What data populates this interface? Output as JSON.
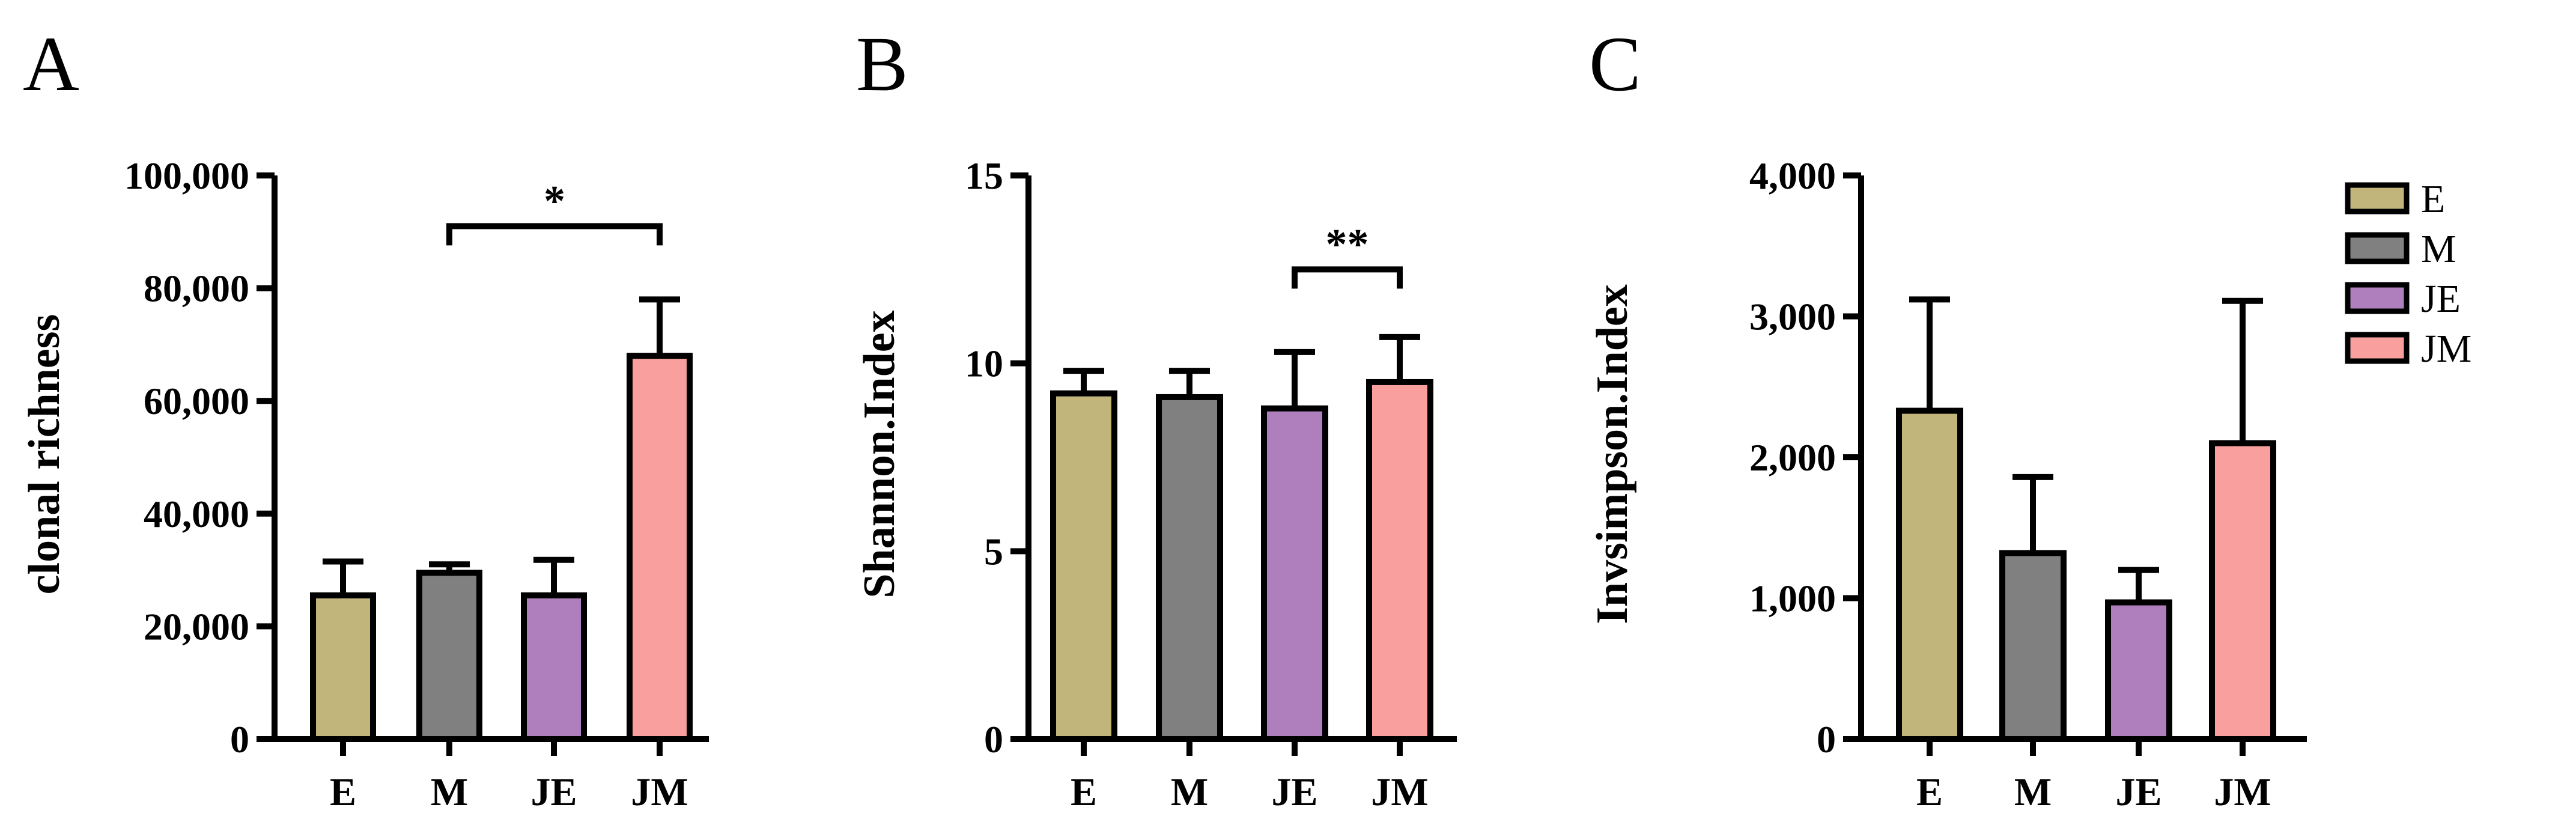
{
  "colors": {
    "E": "#c2b57c",
    "M": "#808080",
    "JE": "#af7fbd",
    "JM": "#f9a09f",
    "axis": "#000000"
  },
  "legend": {
    "entries": [
      {
        "label": "E",
        "color": "#c2b57c"
      },
      {
        "label": "M",
        "color": "#808080"
      },
      {
        "label": "JE",
        "color": "#af7fbd"
      },
      {
        "label": "JM",
        "color": "#f9a09f"
      }
    ]
  },
  "chart_data": [
    {
      "type": "bar",
      "panel": "A",
      "title": "",
      "xlabel": "",
      "ylabel": "clonal richness",
      "categories": [
        "E",
        "M",
        "JE",
        "JM"
      ],
      "values": [
        25500,
        29500,
        25500,
        68000
      ],
      "error_upper": [
        31500,
        31000,
        31800,
        78000
      ],
      "ylim": [
        0,
        100000
      ],
      "yticks": [
        0,
        20000,
        40000,
        60000,
        80000,
        100000
      ],
      "ytick_labels": [
        "0",
        "20,000",
        "40,000",
        "60,000",
        "80,000",
        "100,000"
      ],
      "grid": false,
      "significance": [
        {
          "from": "M",
          "to": "JM",
          "label": "*",
          "level": 91000
        }
      ]
    },
    {
      "type": "bar",
      "panel": "B",
      "title": "",
      "xlabel": "",
      "ylabel": "Shannon.Index",
      "categories": [
        "E",
        "M",
        "JE",
        "JM"
      ],
      "values": [
        9.2,
        9.1,
        8.8,
        9.5
      ],
      "error_upper": [
        9.8,
        9.8,
        10.3,
        10.7
      ],
      "ylim": [
        0,
        15
      ],
      "yticks": [
        0,
        5,
        10,
        15
      ],
      "ytick_labels": [
        "0",
        "5",
        "10",
        "15"
      ],
      "grid": false,
      "significance": [
        {
          "from": "JE",
          "to": "JM",
          "label": "**",
          "level": 12.5
        }
      ]
    },
    {
      "type": "bar",
      "panel": "C",
      "title": "",
      "xlabel": "",
      "ylabel": "Invsimpson.Index",
      "categories": [
        "E",
        "M",
        "JE",
        "JM"
      ],
      "values": [
        2330,
        1320,
        970,
        2100
      ],
      "error_upper": [
        3120,
        1860,
        1200,
        3110
      ],
      "ylim": [
        0,
        4000
      ],
      "yticks": [
        0,
        1000,
        2000,
        3000,
        4000
      ],
      "ytick_labels": [
        "0",
        "1,000",
        "2,000",
        "3,000",
        "4,000"
      ],
      "grid": false,
      "significance": []
    }
  ]
}
